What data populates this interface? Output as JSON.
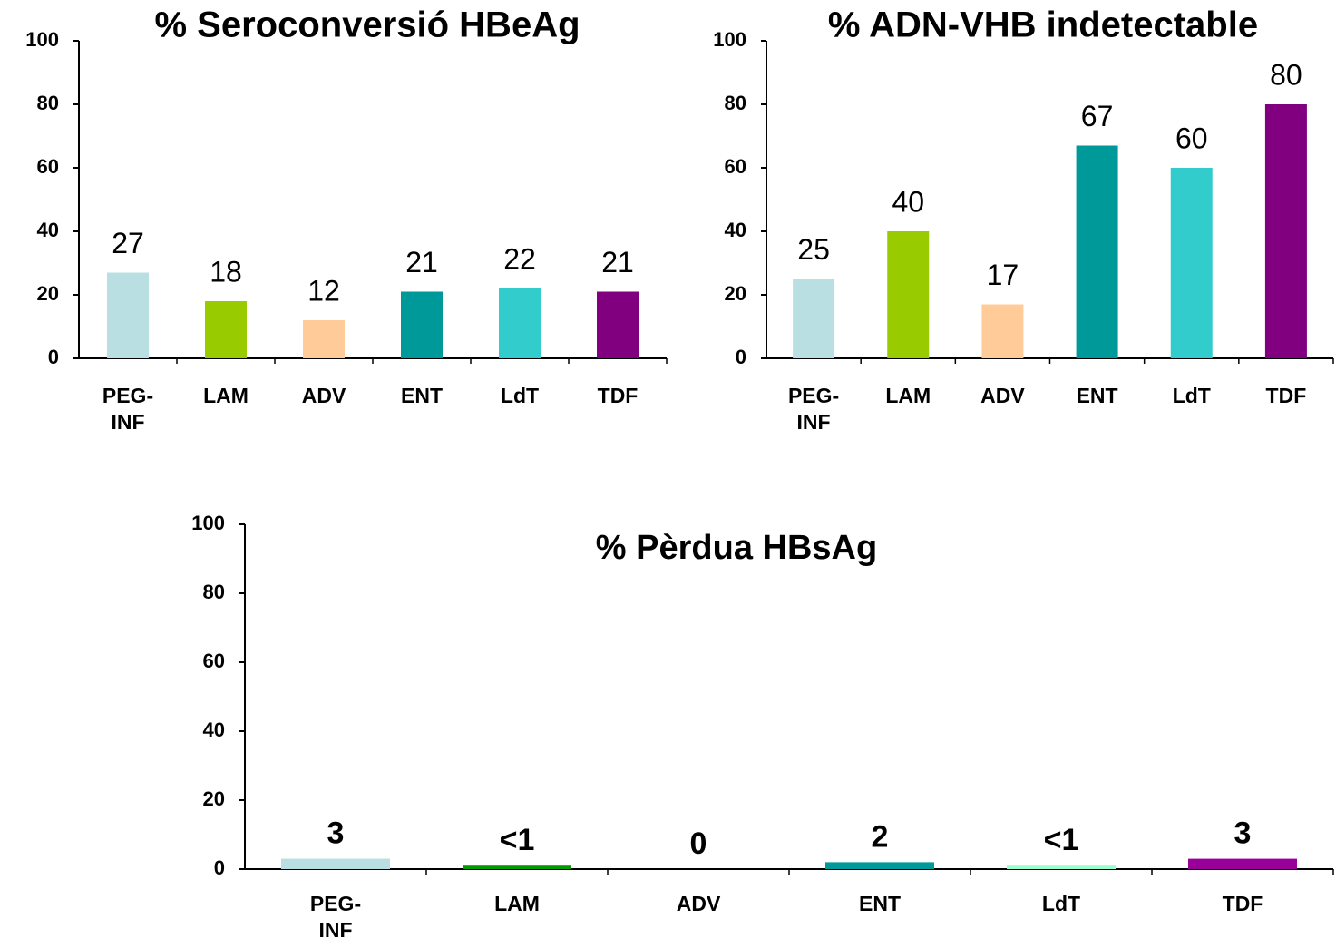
{
  "chart_data": [
    {
      "type": "bar",
      "title": "% Seroconversió HBeAg",
      "categories": [
        "PEG-INF",
        "LAM",
        "ADV",
        "ENT",
        "LdT",
        "TDF"
      ],
      "values": [
        27,
        18,
        12,
        21,
        22,
        21
      ],
      "colors": [
        "#b9dfe3",
        "#99cc00",
        "#ffcc99",
        "#009999",
        "#33cccc",
        "#800080"
      ],
      "ylim": [
        0,
        100
      ],
      "yticks": [
        0,
        20,
        40,
        60,
        80,
        100
      ]
    },
    {
      "type": "bar",
      "title": "% ADN-VHB indetectable",
      "categories": [
        "PEG-INF",
        "LAM",
        "ADV",
        "ENT",
        "LdT",
        "TDF"
      ],
      "values": [
        25,
        40,
        17,
        67,
        60,
        80
      ],
      "colors": [
        "#b9dfe3",
        "#99cc00",
        "#ffcc99",
        "#009999",
        "#33cccc",
        "#800080"
      ],
      "ylim": [
        0,
        100
      ],
      "yticks": [
        0,
        20,
        40,
        60,
        80,
        100
      ]
    },
    {
      "type": "bar",
      "title": "% Pèrdua HBsAg",
      "categories": [
        "PEG-INF",
        "LAM",
        "ADV",
        "ENT",
        "LdT",
        "TDF"
      ],
      "values": [
        3,
        1,
        0,
        2,
        1,
        3
      ],
      "value_labels": [
        "3",
        "<1",
        "0",
        "2",
        "<1",
        "3"
      ],
      "colors": [
        "#b9dfe3",
        "#009900",
        "#ffffff",
        "#009999",
        "#99ffcc",
        "#990099"
      ],
      "ylim": [
        0,
        100
      ],
      "yticks": [
        0,
        20,
        40,
        60,
        80,
        100
      ]
    }
  ]
}
